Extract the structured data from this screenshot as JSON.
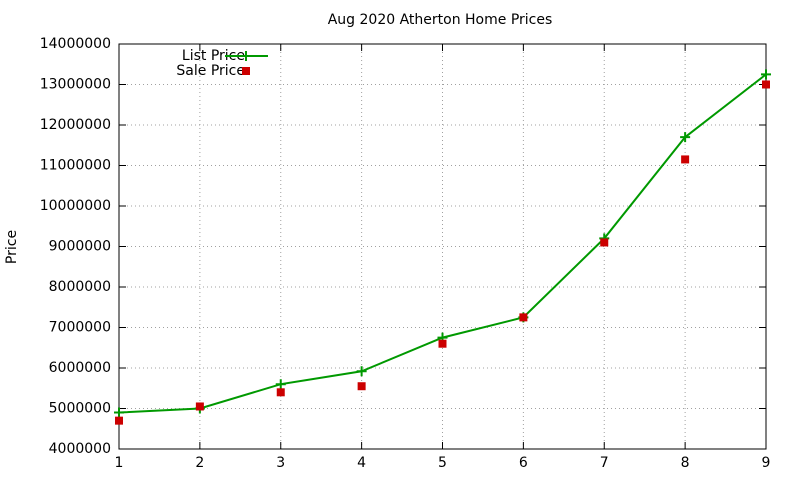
{
  "chart_data": {
    "type": "line",
    "title": "Aug 2020 Atherton Home Prices",
    "y_label": "Price",
    "x": [
      1,
      2,
      3,
      4,
      5,
      6,
      7,
      8,
      9
    ],
    "series": [
      {
        "name": "List Price",
        "color": "#009900",
        "mode": "linespoints",
        "marker": "plus",
        "values": [
          4900000,
          5000000,
          5600000,
          5920000,
          6750000,
          7250000,
          9200000,
          11700000,
          13250000
        ]
      },
      {
        "name": "Sale Price",
        "color": "#cc0000",
        "mode": "points",
        "marker": "square",
        "values": [
          4700000,
          5050000,
          5400000,
          5550000,
          6600000,
          7250000,
          9100000,
          11150000,
          13000000
        ]
      }
    ],
    "xlim": [
      1,
      9
    ],
    "xticks": [
      1,
      2,
      3,
      4,
      5,
      6,
      7,
      8,
      9
    ],
    "ylim": [
      4000000,
      14000000
    ],
    "yticks": [
      4000000,
      5000000,
      6000000,
      7000000,
      8000000,
      9000000,
      10000000,
      11000000,
      12000000,
      13000000,
      14000000
    ],
    "grid": true,
    "legend": "top-left"
  }
}
